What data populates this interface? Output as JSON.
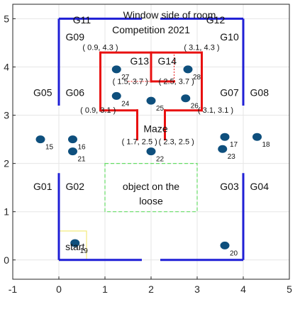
{
  "title": "Window side of room",
  "chart_data": {
    "type": "scatter",
    "xlim": [
      -1,
      5
    ],
    "ylim": [
      -0.4,
      5.3
    ],
    "x_ticks": [
      -1,
      0,
      1,
      2,
      3,
      4,
      5
    ],
    "y_ticks": [
      0,
      1,
      2,
      3,
      4,
      5
    ],
    "tick_labels_x": [
      "-1",
      "0",
      "1",
      "2",
      "3",
      "4",
      "5"
    ],
    "tick_labels_y": [
      "0",
      "1",
      "2",
      "3",
      "4",
      "5"
    ],
    "grid": true,
    "walls_color": "#1f1fd6",
    "maze_color": "#e81010",
    "marker_color": "#0e4f7d",
    "object_box_color": "#66dd66",
    "start_box_color": "#f2ea7a",
    "walls": [
      [
        [
          0,
          5
        ],
        [
          0,
          3.2
        ]
      ],
      [
        [
          0,
          1.8
        ],
        [
          0,
          0
        ]
      ],
      [
        [
          0,
          5
        ],
        [
          1.8,
          5
        ]
      ],
      [
        [
          2.2,
          5
        ],
        [
          4,
          5
        ]
      ],
      [
        [
          4,
          5
        ],
        [
          4,
          3.2
        ]
      ],
      [
        [
          4,
          1.8
        ],
        [
          4,
          0
        ]
      ],
      [
        [
          0,
          0
        ],
        [
          1.8,
          0
        ]
      ],
      [
        [
          2.2,
          0
        ],
        [
          4,
          0
        ]
      ]
    ],
    "maze": [
      [
        [
          0.9,
          4.3
        ],
        [
          3.1,
          4.3
        ]
      ],
      [
        [
          0.9,
          4.3
        ],
        [
          0.9,
          3.1
        ]
      ],
      [
        [
          3.1,
          4.3
        ],
        [
          3.1,
          3.1
        ]
      ],
      [
        [
          0.9,
          3.1
        ],
        [
          1.7,
          3.1
        ]
      ],
      [
        [
          1.7,
          3.1
        ],
        [
          1.7,
          2.5
        ]
      ],
      [
        [
          2.3,
          3.1
        ],
        [
          3.1,
          3.1
        ]
      ],
      [
        [
          2.3,
          3.1
        ],
        [
          2.3,
          2.5
        ]
      ],
      [
        [
          2.0,
          4.3
        ],
        [
          2.0,
          3.7
        ]
      ],
      [
        [
          2.0,
          3.7
        ],
        [
          2.5,
          3.7
        ]
      ]
    ],
    "maze_thin": [
      [
        [
          1.5,
          3.7
        ],
        [
          2.0,
          3.7
        ]
      ],
      [
        [
          2.5,
          3.7
        ],
        [
          2.5,
          4.3
        ]
      ]
    ],
    "object_box": [
      1.0,
      1.0,
      3.0,
      2.0
    ],
    "start_box": [
      0.0,
      0.0,
      0.6,
      0.6
    ],
    "points": [
      {
        "label": "15",
        "x": -0.4,
        "y": 2.5
      },
      {
        "label": "16",
        "x": 0.3,
        "y": 2.5
      },
      {
        "label": "21",
        "x": 0.3,
        "y": 2.25
      },
      {
        "label": "17",
        "x": 3.6,
        "y": 2.55
      },
      {
        "label": "18",
        "x": 4.3,
        "y": 2.55
      },
      {
        "label": "23",
        "x": 3.55,
        "y": 2.3
      },
      {
        "label": "22",
        "x": 2.0,
        "y": 2.25
      },
      {
        "label": "27",
        "x": 1.25,
        "y": 3.95
      },
      {
        "label": "28",
        "x": 2.8,
        "y": 3.95
      },
      {
        "label": "24",
        "x": 1.25,
        "y": 3.4
      },
      {
        "label": "25",
        "x": 2.0,
        "y": 3.3
      },
      {
        "label": "26",
        "x": 2.75,
        "y": 3.35
      },
      {
        "label": "19",
        "x": 0.35,
        "y": 0.35
      },
      {
        "label": "20",
        "x": 3.6,
        "y": 0.3
      }
    ],
    "annotations": [
      {
        "text": "G11",
        "x": 0.5,
        "y": 4.9,
        "anchor": "middle"
      },
      {
        "text": "G09",
        "x": 0.35,
        "y": 4.55,
        "anchor": "middle"
      },
      {
        "text": "G12",
        "x": 3.4,
        "y": 4.9,
        "anchor": "middle"
      },
      {
        "text": "G10",
        "x": 3.7,
        "y": 4.55,
        "anchor": "middle"
      },
      {
        "text": "G05",
        "x": -0.35,
        "y": 3.4,
        "anchor": "middle"
      },
      {
        "text": "G06",
        "x": 0.35,
        "y": 3.4,
        "anchor": "middle"
      },
      {
        "text": "G07",
        "x": 3.7,
        "y": 3.4,
        "anchor": "middle"
      },
      {
        "text": "G08",
        "x": 4.35,
        "y": 3.4,
        "anchor": "middle"
      },
      {
        "text": "G01",
        "x": -0.35,
        "y": 1.45,
        "anchor": "middle"
      },
      {
        "text": "G02",
        "x": 0.35,
        "y": 1.45,
        "anchor": "middle"
      },
      {
        "text": "G03",
        "x": 3.7,
        "y": 1.45,
        "anchor": "middle"
      },
      {
        "text": "G04",
        "x": 4.35,
        "y": 1.45,
        "anchor": "middle"
      },
      {
        "text": "G13",
        "x": 1.75,
        "y": 4.05,
        "anchor": "middle"
      },
      {
        "text": "G14",
        "x": 2.35,
        "y": 4.05,
        "anchor": "middle"
      },
      {
        "text": "Competition 2021",
        "x": 2.0,
        "y": 4.7,
        "anchor": "middle"
      },
      {
        "text": "( 0.9, 4.3 )",
        "x": 0.9,
        "y": 4.35,
        "anchor": "middle",
        "small": true
      },
      {
        "text": "( 3.1, 4.3 )",
        "x": 3.1,
        "y": 4.35,
        "anchor": "middle",
        "small": true
      },
      {
        "text": "( 1.5, 3.7 )",
        "x": 1.55,
        "y": 3.65,
        "anchor": "middle",
        "small": true
      },
      {
        "text": "( 2.5, 3.7 )",
        "x": 2.55,
        "y": 3.65,
        "anchor": "middle",
        "small": true
      },
      {
        "text": "( 0.9, 3.1 )",
        "x": 0.85,
        "y": 3.05,
        "anchor": "middle",
        "small": true
      },
      {
        "text": "( 3.1, 3.1 )",
        "x": 3.4,
        "y": 3.05,
        "anchor": "middle",
        "small": true
      },
      {
        "text": "Maze",
        "x": 2.1,
        "y": 2.65,
        "anchor": "middle"
      },
      {
        "text": "( 1.7, 2.5 )",
        "x": 1.75,
        "y": 2.4,
        "anchor": "middle",
        "small": true
      },
      {
        "text": "( 2.3, 2.5 )",
        "x": 2.55,
        "y": 2.4,
        "anchor": "middle",
        "small": true
      },
      {
        "text": "object on the",
        "x": 2.0,
        "y": 1.45,
        "anchor": "middle"
      },
      {
        "text": "loose",
        "x": 2.0,
        "y": 1.15,
        "anchor": "middle"
      },
      {
        "text": "start",
        "x": 0.35,
        "y": 0.2,
        "anchor": "middle"
      }
    ]
  }
}
